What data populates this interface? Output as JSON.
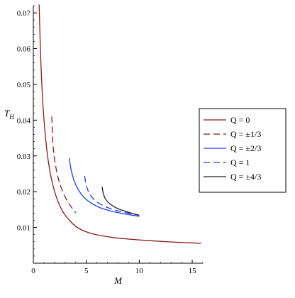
{
  "chart_data": {
    "type": "line",
    "xlabel": "M",
    "ylabel": "T",
    "ylabel_sub": "H",
    "xlim": [
      0,
      16
    ],
    "ylim": [
      0,
      0.072
    ],
    "x_ticks": [
      0,
      5,
      10,
      15
    ],
    "x_tick_labels": [
      "0",
      "5",
      "10",
      "15"
    ],
    "y_ticks": [
      0.01,
      0.02,
      0.03,
      0.04,
      0.05,
      0.06,
      0.07
    ],
    "y_tick_labels": [
      "0.01",
      "0.02",
      "0.03",
      "0.04",
      "0.05",
      "0.06",
      "0.07"
    ],
    "grid": false,
    "legend_position": "right",
    "series": [
      {
        "name": "Q = 0",
        "color": "#8b1a1a",
        "dash": "solid",
        "x": [
          0.55,
          0.6,
          0.7,
          0.8,
          1.0,
          1.3,
          1.6,
          2.0,
          2.5,
          3.0,
          4.0,
          5.0,
          6.0,
          7.0,
          8.0,
          10.0,
          12.0,
          14.0,
          15.8
        ],
        "y": [
          0.0723,
          0.0663,
          0.0568,
          0.0497,
          0.0398,
          0.0306,
          0.0249,
          0.0199,
          0.0159,
          0.0133,
          0.0101,
          0.0087,
          0.0079,
          0.0074,
          0.007,
          0.0065,
          0.0061,
          0.0058,
          0.0056
        ]
      },
      {
        "name": "Q = ±1/3",
        "color": "#8b1a1a",
        "dash": "long-dash",
        "x": [
          1.75,
          1.8,
          1.9,
          2.0,
          2.2,
          2.5,
          3.0,
          3.5,
          4.0
        ],
        "y": [
          0.041,
          0.0355,
          0.0315,
          0.029,
          0.0255,
          0.022,
          0.0184,
          0.016,
          0.0141
        ]
      },
      {
        "name": "Q = ±2/3",
        "color": "#1a3cff",
        "dash": "solid",
        "x": [
          3.4,
          3.5,
          3.7,
          4.0,
          4.5,
          5.0,
          6.0,
          7.0,
          8.0,
          9.0,
          10.0
        ],
        "y": [
          0.0294,
          0.027,
          0.0243,
          0.0218,
          0.0193,
          0.0177,
          0.0158,
          0.0148,
          0.0141,
          0.0136,
          0.0131
        ]
      },
      {
        "name": "Q = 1",
        "color": "#1a3cff",
        "dash": "long-dash",
        "x": [
          4.85,
          4.95,
          5.2,
          5.5,
          6.0,
          7.0,
          8.0,
          9.0,
          10.0
        ],
        "y": [
          0.0244,
          0.0222,
          0.0199,
          0.0185,
          0.017,
          0.0155,
          0.0146,
          0.014,
          0.0134
        ]
      },
      {
        "name": "Q = ±4/3",
        "color": "#222222",
        "dash": "solid",
        "x": [
          6.5,
          6.55,
          6.7,
          7.0,
          7.5,
          8.0,
          9.0,
          10.0
        ],
        "y": [
          0.0214,
          0.02,
          0.0185,
          0.0171,
          0.016,
          0.0152,
          0.0142,
          0.0134
        ]
      }
    ]
  }
}
